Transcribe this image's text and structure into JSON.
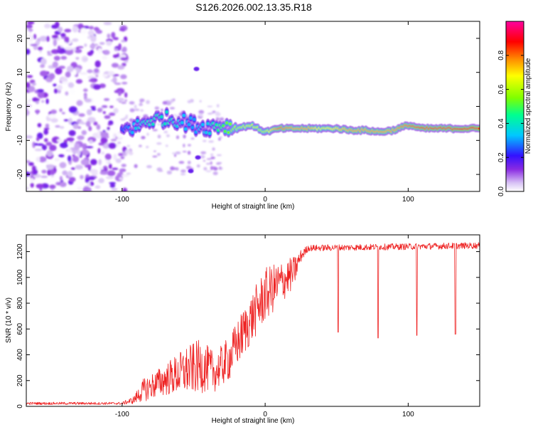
{
  "title": "S126.2026.002.13.35.R18",
  "chart_data": [
    {
      "type": "heatmap",
      "name": "spectrogram",
      "xlabel": "Height of straight line (km)",
      "ylabel": "Frequency (Hz)",
      "xlim": [
        -167,
        150
      ],
      "ylim": [
        -25,
        25
      ],
      "xticks": [
        -100,
        0,
        100
      ],
      "yticks": [
        -20,
        -10,
        0,
        10,
        20
      ],
      "colorbar": {
        "label": "Normalized spectral amplitude",
        "range": [
          0,
          1
        ],
        "ticks": [
          0,
          0.2,
          0.4,
          0.6,
          0.8
        ],
        "tick_labels": [
          "0.0",
          "0.2",
          "0.4",
          "0.6",
          "0.8"
        ],
        "colormap": [
          "#ffffff",
          "#d8c2f5",
          "#8a2be2",
          "#3311ff",
          "#00c8ff",
          "#00ff90",
          "#7fff00",
          "#ffff00",
          "#ff8800",
          "#ff0000",
          "#ff00a0"
        ]
      },
      "noise_region": {
        "x_range": [
          -167,
          -97
        ],
        "y_range": [
          -25,
          25
        ]
      },
      "ridge": [
        {
          "x": -100,
          "y": -7.0,
          "amp": 0.25
        },
        {
          "x": -90,
          "y": -6.0,
          "amp": 0.35
        },
        {
          "x": -80,
          "y": -4.0,
          "amp": 0.4
        },
        {
          "x": -70,
          "y": -3.5,
          "amp": 0.4
        },
        {
          "x": -60,
          "y": -4.0,
          "amp": 0.35
        },
        {
          "x": -50,
          "y": -5.5,
          "amp": 0.3
        },
        {
          "x": -40,
          "y": -6.0,
          "amp": 0.35
        },
        {
          "x": -30,
          "y": -5.5,
          "amp": 0.5
        },
        {
          "x": -20,
          "y": -6.5,
          "amp": 0.6
        },
        {
          "x": -10,
          "y": -5.5,
          "amp": 0.65
        },
        {
          "x": 0,
          "y": -7.5,
          "amp": 0.6
        },
        {
          "x": 10,
          "y": -6.5,
          "amp": 0.8
        },
        {
          "x": 20,
          "y": -6.5,
          "amp": 0.75
        },
        {
          "x": 30,
          "y": -6.5,
          "amp": 0.75
        },
        {
          "x": 40,
          "y": -6.5,
          "amp": 0.65
        },
        {
          "x": 50,
          "y": -6.5,
          "amp": 0.7
        },
        {
          "x": 60,
          "y": -7.0,
          "amp": 0.75
        },
        {
          "x": 70,
          "y": -7.0,
          "amp": 0.75
        },
        {
          "x": 80,
          "y": -7.5,
          "amp": 0.75
        },
        {
          "x": 90,
          "y": -7.0,
          "amp": 0.75
        },
        {
          "x": 100,
          "y": -5.5,
          "amp": 0.8
        },
        {
          "x": 110,
          "y": -6.5,
          "amp": 0.85
        },
        {
          "x": 120,
          "y": -6.5,
          "amp": 0.85
        },
        {
          "x": 130,
          "y": -6.5,
          "amp": 0.85
        },
        {
          "x": 140,
          "y": -6.5,
          "amp": 0.9
        },
        {
          "x": 150,
          "y": -6.5,
          "amp": 0.9
        }
      ],
      "side_lobes": [
        {
          "x": -48,
          "y": 11.0
        },
        {
          "x": -52,
          "y": -19.0
        },
        {
          "x": -47,
          "y": -15.0
        }
      ]
    },
    {
      "type": "line",
      "name": "snr",
      "xlabel": "Height of straight line (km)",
      "ylabel": "SNR (10 * v/v)",
      "xlim": [
        -167,
        150
      ],
      "ylim": [
        0,
        1330
      ],
      "xticks": [
        -100,
        0,
        100
      ],
      "yticks": [
        0,
        200,
        400,
        600,
        800,
        1000,
        1200
      ],
      "color": "#ee2222",
      "envelope": [
        {
          "x": -167,
          "base": 20,
          "noise": 20
        },
        {
          "x": -100,
          "base": 20,
          "noise": 20
        },
        {
          "x": -92,
          "base": 40,
          "noise": 60
        },
        {
          "x": -85,
          "base": 100,
          "noise": 180
        },
        {
          "x": -70,
          "base": 170,
          "noise": 250
        },
        {
          "x": -55,
          "base": 220,
          "noise": 380
        },
        {
          "x": -45,
          "base": 250,
          "noise": 420
        },
        {
          "x": -35,
          "base": 220,
          "noise": 300
        },
        {
          "x": -25,
          "base": 320,
          "noise": 350
        },
        {
          "x": -15,
          "base": 520,
          "noise": 380
        },
        {
          "x": 0,
          "base": 800,
          "noise": 420
        },
        {
          "x": 10,
          "base": 900,
          "noise": 350
        },
        {
          "x": 20,
          "base": 1000,
          "noise": 250
        },
        {
          "x": 25,
          "base": 1150,
          "noise": 100
        },
        {
          "x": 30,
          "base": 1220,
          "noise": 50
        },
        {
          "x": 150,
          "base": 1240,
          "noise": 50
        }
      ],
      "dips": [
        {
          "x": 51,
          "y": 575
        },
        {
          "x": 79,
          "y": 530
        },
        {
          "x": 106,
          "y": 550
        },
        {
          "x": 133,
          "y": 560
        }
      ]
    }
  ]
}
